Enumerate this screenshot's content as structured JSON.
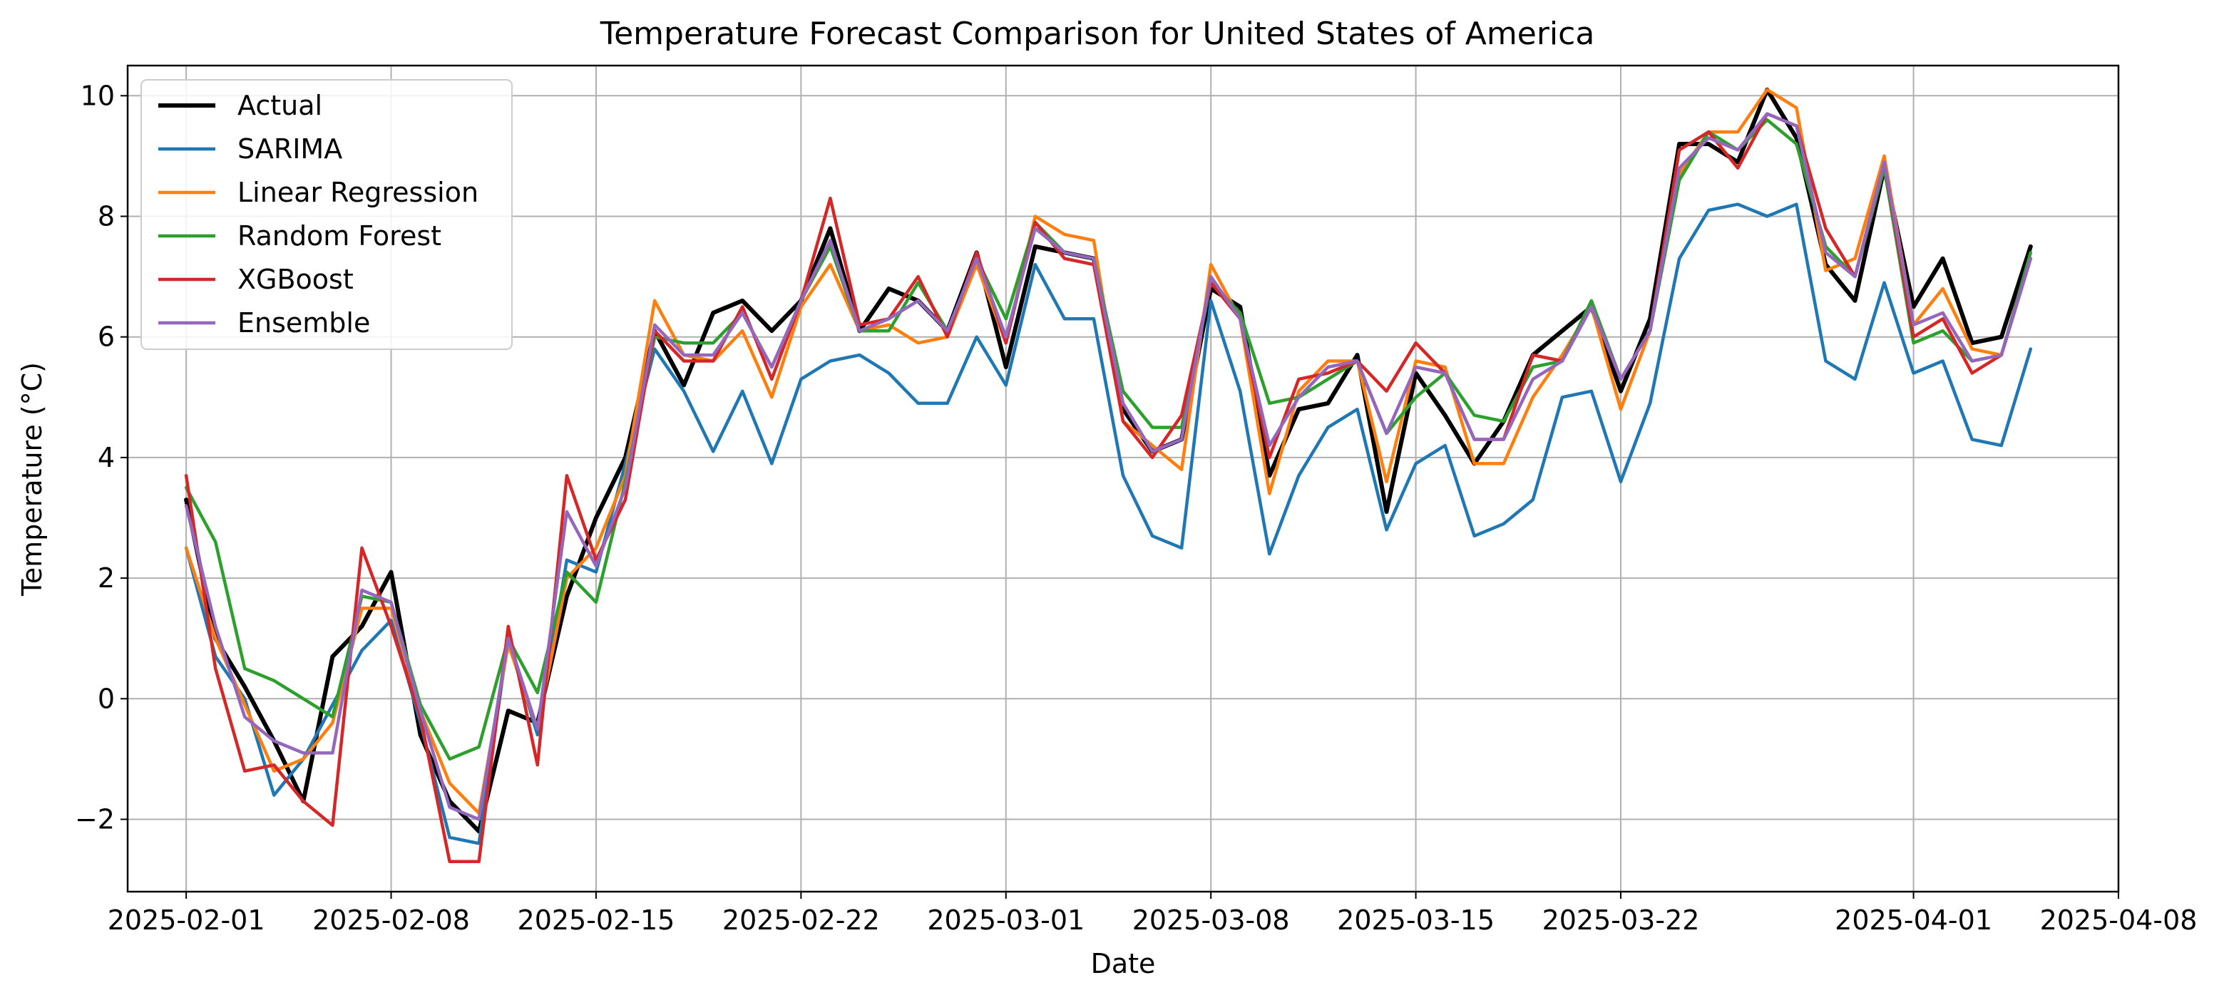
{
  "chart_data": {
    "type": "line",
    "title": "Temperature Forecast Comparison for United States of America",
    "xlabel": "Date",
    "ylabel": "Temperature (°C)",
    "xlim": [
      "2025-01-30",
      "2025-04-08"
    ],
    "ylim": [
      -3.2,
      10.5
    ],
    "x_ticks": [
      "2025-02-01",
      "2025-02-08",
      "2025-02-15",
      "2025-02-22",
      "2025-03-01",
      "2025-03-08",
      "2025-03-15",
      "2025-03-22",
      "2025-04-01",
      "2025-04-08"
    ],
    "y_ticks": [
      -2,
      0,
      2,
      4,
      6,
      8,
      10
    ],
    "grid": true,
    "legend_position": "top-left",
    "x": [
      "2025-02-01",
      "2025-02-02",
      "2025-02-03",
      "2025-02-04",
      "2025-02-05",
      "2025-02-06",
      "2025-02-07",
      "2025-02-08",
      "2025-02-09",
      "2025-02-10",
      "2025-02-11",
      "2025-02-12",
      "2025-02-13",
      "2025-02-14",
      "2025-02-15",
      "2025-02-16",
      "2025-02-17",
      "2025-02-18",
      "2025-02-19",
      "2025-02-20",
      "2025-02-21",
      "2025-02-22",
      "2025-02-23",
      "2025-02-24",
      "2025-02-25",
      "2025-02-26",
      "2025-02-27",
      "2025-02-28",
      "2025-03-01",
      "2025-03-02",
      "2025-03-03",
      "2025-03-04",
      "2025-03-05",
      "2025-03-06",
      "2025-03-07",
      "2025-03-08",
      "2025-03-09",
      "2025-03-10",
      "2025-03-11",
      "2025-03-12",
      "2025-03-13",
      "2025-03-14",
      "2025-03-15",
      "2025-03-16",
      "2025-03-17",
      "2025-03-18",
      "2025-03-19",
      "2025-03-20",
      "2025-03-21",
      "2025-03-22",
      "2025-03-23",
      "2025-03-24",
      "2025-03-25",
      "2025-03-26",
      "2025-03-27",
      "2025-03-28",
      "2025-03-29",
      "2025-03-30",
      "2025-03-31",
      "2025-04-01",
      "2025-04-02",
      "2025-04-03",
      "2025-04-04",
      "2025-04-05"
    ],
    "series": [
      {
        "name": "Actual",
        "color": "#000000",
        "width": 6,
        "values": [
          3.3,
          1.0,
          0.2,
          -0.7,
          -1.7,
          0.7,
          1.2,
          2.1,
          -0.6,
          -1.7,
          -2.2,
          -0.2,
          -0.4,
          1.7,
          3.0,
          4.0,
          6.1,
          5.2,
          6.4,
          6.6,
          6.1,
          6.6,
          7.8,
          6.1,
          6.8,
          6.6,
          6.1,
          7.4,
          5.5,
          7.5,
          7.4,
          7.3,
          4.8,
          4.1,
          4.3,
          6.8,
          6.5,
          3.7,
          4.8,
          4.9,
          5.7,
          3.1,
          5.4,
          4.7,
          3.9,
          4.6,
          5.7,
          6.1,
          6.5,
          5.1,
          6.3,
          9.2,
          9.2,
          8.9,
          10.1,
          9.3,
          7.2,
          6.6,
          8.8,
          6.5,
          7.3,
          5.9,
          6.0,
          7.5
        ]
      },
      {
        "name": "SARIMA",
        "color": "#1f77b4",
        "width": 4.5,
        "values": [
          2.5,
          0.7,
          0.0,
          -1.6,
          -1.0,
          -0.1,
          0.8,
          1.3,
          -0.4,
          -2.3,
          -2.4,
          1.0,
          -0.6,
          2.3,
          2.1,
          3.9,
          5.8,
          5.1,
          4.1,
          5.1,
          3.9,
          5.3,
          5.6,
          5.7,
          5.4,
          4.9,
          4.9,
          6.0,
          5.2,
          7.2,
          6.3,
          6.3,
          3.7,
          2.7,
          2.5,
          6.6,
          5.1,
          2.4,
          3.7,
          4.5,
          4.8,
          2.8,
          3.9,
          4.2,
          2.7,
          2.9,
          3.3,
          5.0,
          5.1,
          3.6,
          4.9,
          7.3,
          8.1,
          8.2,
          8.0,
          8.2,
          5.6,
          5.3,
          6.9,
          5.4,
          5.6,
          4.3,
          4.2,
          5.8
        ]
      },
      {
        "name": "Linear Regression",
        "color": "#ff7f0e",
        "width": 4.5,
        "values": [
          2.5,
          1.0,
          -0.1,
          -1.2,
          -1.0,
          -0.4,
          1.5,
          1.5,
          -0.2,
          -1.4,
          -1.9,
          0.9,
          -0.5,
          2.0,
          2.5,
          3.7,
          6.6,
          5.7,
          5.6,
          6.1,
          5.0,
          6.5,
          7.2,
          6.1,
          6.2,
          5.9,
          6.0,
          7.2,
          5.9,
          8.0,
          7.7,
          7.6,
          4.6,
          4.2,
          3.8,
          7.2,
          6.3,
          3.4,
          5.1,
          5.6,
          5.6,
          3.6,
          5.6,
          5.5,
          3.9,
          3.9,
          5.0,
          5.7,
          6.5,
          4.8,
          6.1,
          8.7,
          9.4,
          9.4,
          10.1,
          9.8,
          7.1,
          7.3,
          9.0,
          6.2,
          6.8,
          5.8,
          5.7,
          7.3
        ]
      },
      {
        "name": "Random Forest",
        "color": "#2ca02c",
        "width": 4.5,
        "values": [
          3.5,
          2.6,
          0.5,
          0.3,
          0.0,
          -0.3,
          1.7,
          1.6,
          -0.1,
          -1.0,
          -0.8,
          1.0,
          0.1,
          2.1,
          1.6,
          3.6,
          6.0,
          5.9,
          5.9,
          6.4,
          5.5,
          6.6,
          7.5,
          6.1,
          6.1,
          6.9,
          6.1,
          7.3,
          6.3,
          7.9,
          7.4,
          7.3,
          5.1,
          4.5,
          4.5,
          6.9,
          6.4,
          4.9,
          5.0,
          5.3,
          5.6,
          4.4,
          5.0,
          5.4,
          4.7,
          4.6,
          5.5,
          5.6,
          6.6,
          5.3,
          6.1,
          8.6,
          9.4,
          9.1,
          9.6,
          9.2,
          7.5,
          7.0,
          8.8,
          5.9,
          6.1,
          5.6,
          5.7,
          7.4
        ]
      },
      {
        "name": "XGBoost",
        "color": "#d62728",
        "width": 4.5,
        "values": [
          3.7,
          0.5,
          -1.2,
          -1.1,
          -1.7,
          -2.1,
          2.5,
          1.2,
          -0.3,
          -2.7,
          -2.7,
          1.2,
          -1.1,
          3.7,
          2.3,
          3.3,
          6.1,
          5.6,
          5.6,
          6.5,
          5.3,
          6.6,
          8.3,
          6.2,
          6.3,
          7.0,
          6.0,
          7.4,
          5.9,
          7.9,
          7.3,
          7.2,
          4.6,
          4.0,
          4.7,
          6.9,
          6.3,
          4.0,
          5.3,
          5.4,
          5.6,
          5.1,
          5.9,
          5.4,
          4.3,
          4.3,
          5.7,
          5.6,
          6.5,
          5.3,
          6.1,
          9.1,
          9.4,
          8.8,
          9.7,
          9.5,
          7.8,
          7.0,
          8.9,
          6.0,
          6.3,
          5.4,
          5.7,
          7.3
        ]
      },
      {
        "name": "Ensemble",
        "color": "#9467bd",
        "width": 4.5,
        "values": [
          3.2,
          1.2,
          -0.3,
          -0.7,
          -0.9,
          -0.9,
          1.8,
          1.6,
          -0.2,
          -1.8,
          -2.0,
          1.0,
          -0.5,
          3.1,
          2.2,
          3.5,
          6.2,
          5.7,
          5.7,
          6.4,
          5.5,
          6.6,
          7.6,
          6.1,
          6.3,
          6.6,
          6.1,
          7.3,
          6.0,
          7.8,
          7.4,
          7.3,
          4.9,
          4.1,
          4.3,
          7.0,
          6.3,
          4.2,
          5.0,
          5.5,
          5.6,
          4.4,
          5.5,
          5.4,
          4.3,
          4.3,
          5.3,
          5.6,
          6.5,
          5.3,
          6.1,
          8.8,
          9.3,
          9.1,
          9.7,
          9.5,
          7.4,
          7.0,
          8.9,
          6.2,
          6.4,
          5.6,
          5.7,
          7.3
        ]
      }
    ]
  }
}
